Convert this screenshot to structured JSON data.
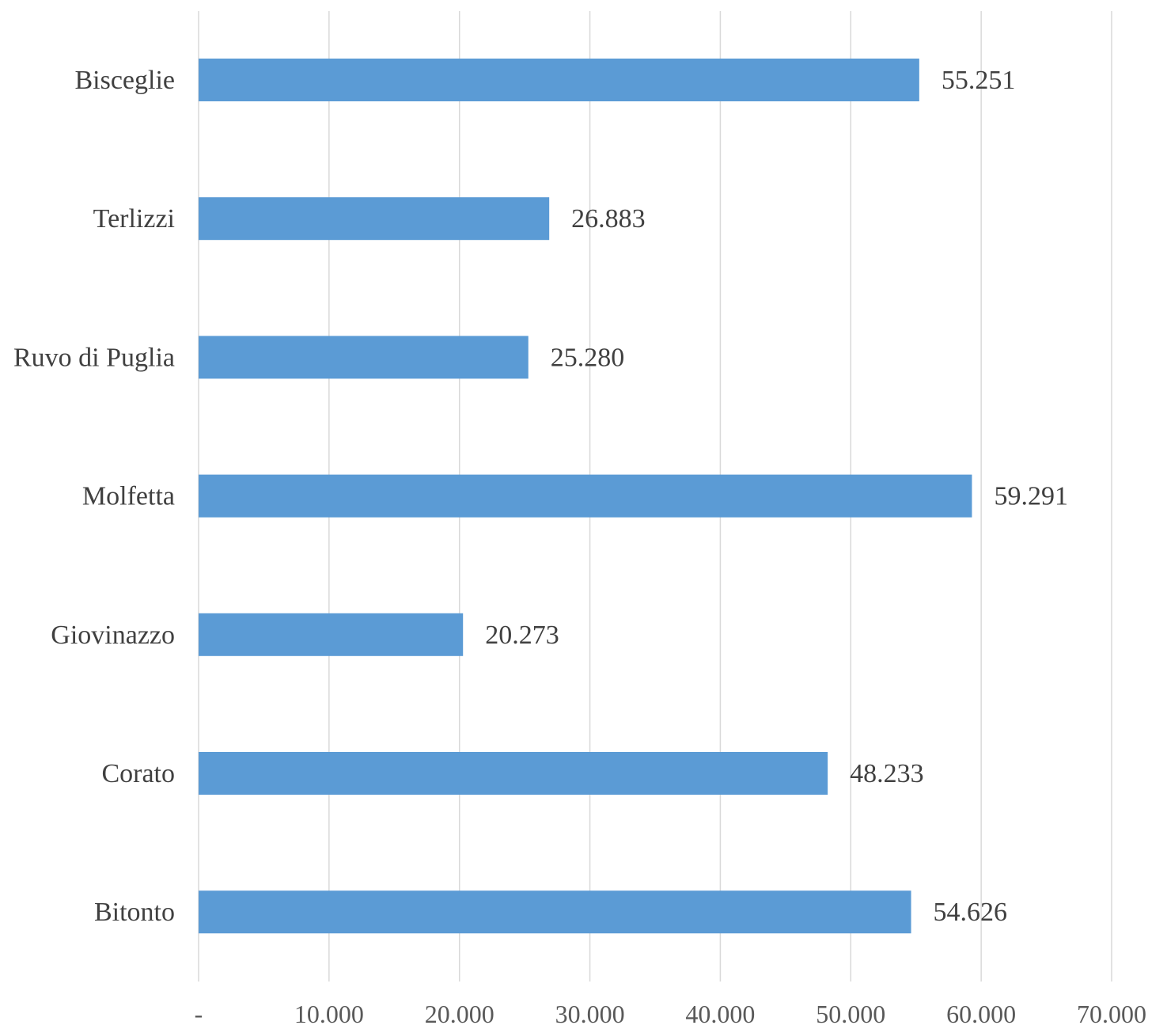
{
  "chart_data": {
    "type": "bar",
    "orientation": "horizontal",
    "title": "",
    "xlabel": "",
    "ylabel": "",
    "categories": [
      "Bisceglie",
      "Terlizzi",
      "Ruvo di Puglia",
      "Molfetta",
      "Giovinazzo",
      "Corato",
      "Bitonto"
    ],
    "values": [
      55251,
      26883,
      25280,
      59291,
      20273,
      48233,
      54626
    ],
    "value_labels": [
      "55.251",
      "26.883",
      "25.280",
      "59.291",
      "20.273",
      "48.233",
      "54.626"
    ],
    "xlim": [
      0,
      70000
    ],
    "x_ticks": [
      0,
      10000,
      20000,
      30000,
      40000,
      50000,
      60000,
      70000
    ],
    "x_tick_labels": [
      "-",
      "10.000",
      "20.000",
      "30.000",
      "40.000",
      "50.000",
      "60.000",
      "70.000"
    ],
    "grid": "vertical",
    "legend": "none",
    "bar_color": "#5b9bd5"
  }
}
